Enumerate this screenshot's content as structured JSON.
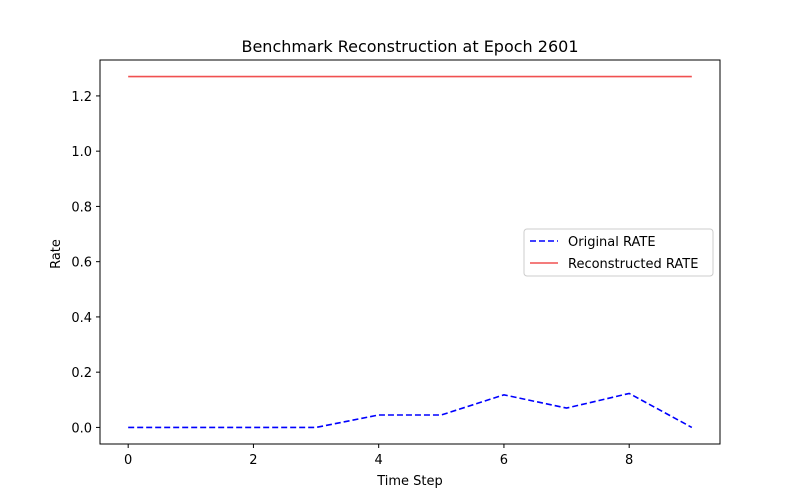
{
  "chart_data": {
    "type": "line",
    "title": "Benchmark Reconstruction at Epoch 2601",
    "xlabel": "Time Step",
    "ylabel": "Rate",
    "xlim": [
      -0.45,
      9.45
    ],
    "ylim": [
      -0.06,
      1.33
    ],
    "xticks": [
      0,
      2,
      4,
      6,
      8
    ],
    "yticks": [
      0.0,
      0.2,
      0.4,
      0.6,
      0.8,
      1.0,
      1.2
    ],
    "xtick_labels": [
      "0",
      "2",
      "4",
      "6",
      "8"
    ],
    "ytick_labels": [
      "0.0",
      "0.2",
      "0.4",
      "0.6",
      "0.8",
      "1.0",
      "1.2"
    ],
    "x": [
      0,
      1,
      2,
      3,
      4,
      5,
      6,
      7,
      8,
      9
    ],
    "series": [
      {
        "name": "Original RATE",
        "values": [
          0.0,
          0.0,
          0.0,
          0.0,
          0.045,
          0.045,
          0.118,
          0.07,
          0.123,
          0.0
        ],
        "color": "#0000ff",
        "style": "dashed"
      },
      {
        "name": "Reconstructed RATE",
        "values": [
          1.27,
          1.27,
          1.27,
          1.27,
          1.27,
          1.27,
          1.27,
          1.27,
          1.27,
          1.27
        ],
        "color": "#f05050",
        "style": "solid"
      }
    ],
    "grid": false,
    "legend_position": "center-right"
  }
}
